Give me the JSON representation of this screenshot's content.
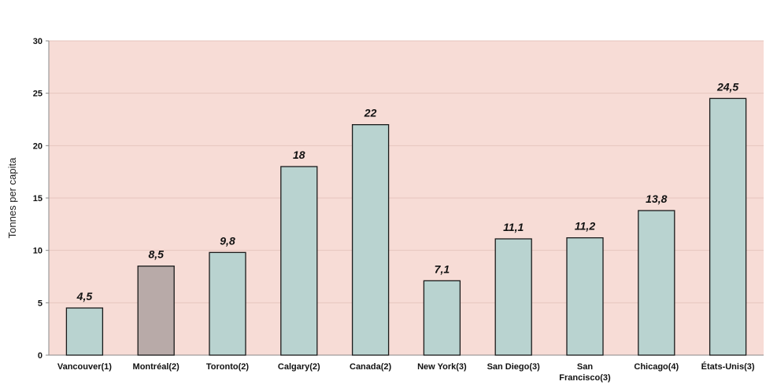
{
  "chart_data": {
    "type": "bar",
    "ylabel": "Tonnes per capita",
    "ylim": [
      0,
      30
    ],
    "yticks": [
      "0",
      "5",
      "10",
      "15",
      "20",
      "25",
      "30"
    ],
    "grid": true,
    "categories": [
      "Vancouver(1)",
      "Montréal(2)",
      "Toronto(2)",
      "Calgary(2)",
      "Canada(2)",
      "New York(3)",
      "San Diego(3)",
      "San Francisco(3)",
      "Chicago(4)",
      "États-Unis(3)"
    ],
    "values": [
      4.5,
      8.5,
      9.8,
      18,
      22,
      7.1,
      11.1,
      11.2,
      13.8,
      24.5
    ],
    "value_labels": [
      "4,5",
      "8,5",
      "9,8",
      "18",
      "22",
      "7,1",
      "11,1",
      "11,2",
      "13,8",
      "24,5"
    ],
    "highlight_index": 1,
    "colors": {
      "bar": "#b9d3d0",
      "bar_highlight": "#b8aaa8",
      "bar_stroke": "#1a1a1a",
      "plot_bg": "#f7dcd6"
    }
  }
}
